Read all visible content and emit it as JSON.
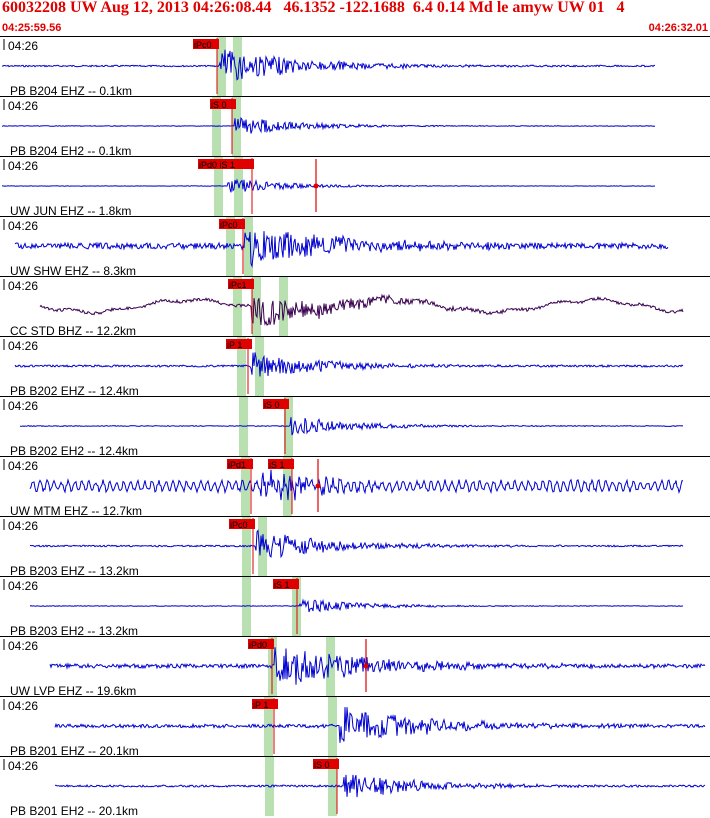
{
  "header": {
    "title": "60032208 UW Aug 12, 2013 04:26:08.44   46.1352 -122.1688  6.4 0.14 Md le amyw UW 01   4",
    "start_time": "04:25:59.56",
    "end_time": "04:26:32.01"
  },
  "colors": {
    "trace": "#0000d0",
    "trace_broadband": "#3a0050",
    "pick_box": "#e00000",
    "pick_band": "#b8e0b0",
    "header_text": "#e00000",
    "divider": "#000000"
  },
  "traces": [
    {
      "time_label": "04:26",
      "station_label": "PB B204 EHZ -- 0.1km",
      "picks": [
        "iPc0"
      ]
    },
    {
      "time_label": "04:26",
      "station_label": "PB B204 EH2 -- 0.1km",
      "picks": [
        "iS 0"
      ]
    },
    {
      "time_label": "04:26",
      "station_label": "UW JUN EHZ -- 1.8km",
      "picks": [
        "iPd0 iS 1"
      ]
    },
    {
      "time_label": "04:26",
      "station_label": "UW SHW EHZ -- 8.3km",
      "picks": [
        "iPc0"
      ]
    },
    {
      "time_label": "04:26",
      "station_label": "CC STD BHZ -- 12.2km",
      "picks": [
        "iPc1"
      ]
    },
    {
      "time_label": "04:26",
      "station_label": "PB B202 EHZ -- 12.4km",
      "picks": [
        "iP 1"
      ]
    },
    {
      "time_label": "04:26",
      "station_label": "PB B202 EH2 -- 12.4km",
      "picks": [
        "iS 0"
      ]
    },
    {
      "time_label": "04:26",
      "station_label": "UW MTM EHZ -- 12.7km",
      "picks": [
        "iPd1",
        "iS 1"
      ]
    },
    {
      "time_label": "04:26",
      "station_label": "PB B203 EHZ -- 13.2km",
      "picks": [
        "iPc0"
      ]
    },
    {
      "time_label": "04:26",
      "station_label": "PB B203 EH2 -- 13.2km",
      "picks": [
        "iS 1"
      ]
    },
    {
      "time_label": "04:26",
      "station_label": "UW LVP EHZ -- 19.6km",
      "picks": [
        "iPd0"
      ]
    },
    {
      "time_label": "04:26",
      "station_label": "PB B201 EHZ -- 20.1km",
      "picks": [
        "iP 1"
      ]
    },
    {
      "time_label": "04:26",
      "station_label": "PB B201 EH2 -- 20.1km",
      "picks": [
        "iS 0"
      ]
    }
  ]
}
